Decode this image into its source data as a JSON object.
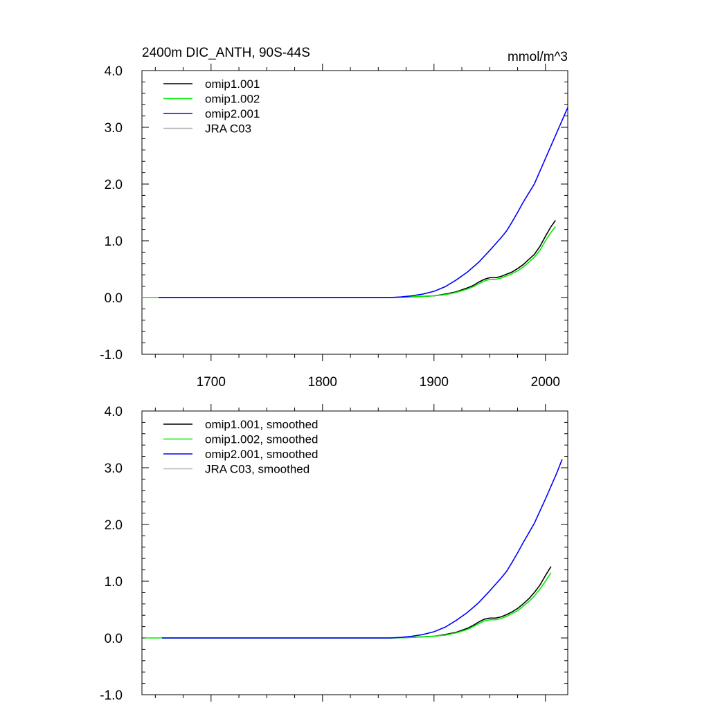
{
  "chart_data": [
    {
      "type": "line",
      "title": "2400m DIC_ANTH, 90S-44S",
      "units": "mmol/m^3",
      "xlim": [
        1638,
        2020
      ],
      "ylim": [
        -1.0,
        4.0
      ],
      "xticks": [
        1700,
        1800,
        1900,
        2000
      ],
      "xtick_labels": [
        "1700",
        "1800",
        "1900",
        "2000"
      ],
      "yticks": [
        -1.0,
        0.0,
        1.0,
        2.0,
        3.0,
        4.0
      ],
      "ytick_labels": [
        "-1.0",
        "0.0",
        "1.0",
        "2.0",
        "3.0",
        "4.0"
      ],
      "legend_position": "top-left",
      "series": [
        {
          "name": "omip1.001",
          "color": "#000000",
          "x": [
            1653,
            1860,
            1870,
            1880,
            1890,
            1900,
            1910,
            1920,
            1930,
            1935,
            1940,
            1945,
            1950,
            1955,
            1960,
            1965,
            1970,
            1975,
            1980,
            1985,
            1990,
            1995,
            2000,
            2005,
            2009
          ],
          "y": [
            0.0,
            0.0,
            0.003,
            0.01,
            0.02,
            0.03,
            0.06,
            0.1,
            0.17,
            0.21,
            0.27,
            0.32,
            0.35,
            0.35,
            0.37,
            0.41,
            0.45,
            0.51,
            0.58,
            0.67,
            0.76,
            0.9,
            1.08,
            1.25,
            1.36
          ]
        },
        {
          "name": "omip1.002",
          "color": "#00ee00",
          "x": [
            1638,
            1860,
            1870,
            1880,
            1890,
            1900,
            1910,
            1920,
            1930,
            1935,
            1940,
            1945,
            1950,
            1955,
            1960,
            1965,
            1970,
            1975,
            1980,
            1985,
            1990,
            1995,
            2000,
            2005,
            2009
          ],
          "y": [
            0.0,
            0.0,
            0.003,
            0.01,
            0.02,
            0.03,
            0.05,
            0.09,
            0.15,
            0.19,
            0.24,
            0.29,
            0.32,
            0.32,
            0.34,
            0.38,
            0.42,
            0.47,
            0.54,
            0.62,
            0.71,
            0.83,
            1.0,
            1.15,
            1.25
          ]
        },
        {
          "name": "omip2.001",
          "color": "#0000ff",
          "x": [
            1653,
            1860,
            1870,
            1880,
            1890,
            1900,
            1910,
            1920,
            1930,
            1940,
            1950,
            1960,
            1965,
            1970,
            1975,
            1980,
            1990,
            2000,
            2010,
            2020
          ],
          "y": [
            0.0,
            0.0,
            0.01,
            0.03,
            0.06,
            0.11,
            0.19,
            0.31,
            0.45,
            0.62,
            0.83,
            1.05,
            1.17,
            1.33,
            1.5,
            1.68,
            2.0,
            2.45,
            2.9,
            3.35
          ]
        },
        {
          "name": "JRA C03",
          "color": "#b4b4b4",
          "x": [],
          "y": []
        }
      ]
    },
    {
      "type": "line",
      "xlim": [
        1638,
        2020
      ],
      "ylim": [
        -1.0,
        4.0
      ],
      "xticks": [
        1700,
        1800,
        1900,
        2000
      ],
      "yticks": [
        -1.0,
        0.0,
        1.0,
        2.0,
        3.0,
        4.0
      ],
      "ytick_labels": [
        "-1.0",
        "0.0",
        "1.0",
        "2.0",
        "3.0",
        "4.0"
      ],
      "legend_position": "top-left",
      "series": [
        {
          "name": "omip1.001, smoothed",
          "color": "#000000",
          "x": [
            1656,
            1860,
            1870,
            1880,
            1890,
            1900,
            1910,
            1920,
            1930,
            1935,
            1940,
            1945,
            1950,
            1955,
            1960,
            1965,
            1970,
            1975,
            1980,
            1985,
            1990,
            1995,
            2000,
            2005
          ],
          "y": [
            0.0,
            0.0,
            0.003,
            0.01,
            0.02,
            0.03,
            0.06,
            0.1,
            0.17,
            0.22,
            0.28,
            0.33,
            0.35,
            0.35,
            0.37,
            0.41,
            0.46,
            0.52,
            0.6,
            0.69,
            0.8,
            0.93,
            1.1,
            1.26
          ]
        },
        {
          "name": "omip1.002, smoothed",
          "color": "#00ee00",
          "x": [
            1641,
            1860,
            1870,
            1880,
            1890,
            1900,
            1910,
            1920,
            1930,
            1935,
            1940,
            1945,
            1950,
            1955,
            1960,
            1965,
            1970,
            1975,
            1980,
            1985,
            1990,
            1995,
            2000,
            2005
          ],
          "y": [
            0.0,
            0.0,
            0.003,
            0.01,
            0.02,
            0.03,
            0.05,
            0.09,
            0.15,
            0.2,
            0.25,
            0.3,
            0.32,
            0.32,
            0.34,
            0.38,
            0.43,
            0.48,
            0.56,
            0.64,
            0.74,
            0.86,
            1.0,
            1.15
          ]
        },
        {
          "name": "omip2.001, smoothed",
          "color": "#0000ff",
          "x": [
            1656,
            1860,
            1870,
            1880,
            1890,
            1900,
            1910,
            1920,
            1930,
            1940,
            1950,
            1960,
            1965,
            1970,
            1975,
            1980,
            1990,
            2000,
            2010,
            2015
          ],
          "y": [
            0.0,
            0.0,
            0.01,
            0.03,
            0.06,
            0.11,
            0.19,
            0.31,
            0.45,
            0.62,
            0.83,
            1.05,
            1.17,
            1.33,
            1.5,
            1.68,
            2.02,
            2.45,
            2.9,
            3.15
          ]
        },
        {
          "name": "JRA C03, smoothed",
          "color": "#b4b4b4",
          "x": [],
          "y": []
        }
      ]
    }
  ]
}
